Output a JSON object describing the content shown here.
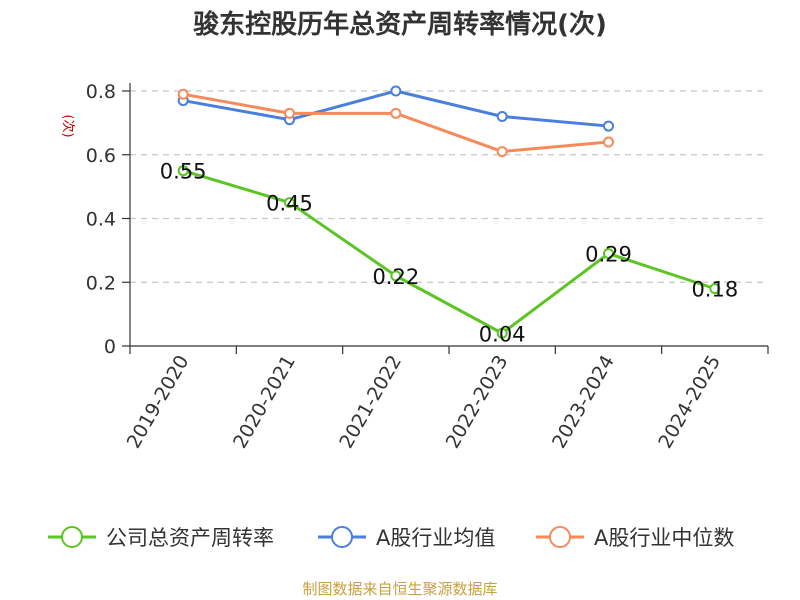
{
  "chart_data": {
    "type": "line",
    "title": "骏东控股历年总资产周转率情况(次)",
    "ylabel": "(次)",
    "categories": [
      "2019-2020",
      "2020-2021",
      "2021-2022",
      "2022-2023",
      "2023-2024",
      "2024-2025"
    ],
    "y_ticks": [
      "0",
      "0.2",
      "0.4",
      "0.6",
      "0.8"
    ],
    "ylim": [
      0,
      0.8
    ],
    "grid": true,
    "legend_position": "bottom",
    "series": [
      {
        "name": "公司总资产周转率",
        "color": "#5cc424",
        "values": [
          0.55,
          0.45,
          0.22,
          0.04,
          0.29,
          0.18
        ],
        "labels": [
          "0.55",
          "0.45",
          "0.22",
          "0.04",
          "0.29",
          "0.18"
        ]
      },
      {
        "name": "A股行业均值",
        "color": "#4a7fdc",
        "values": [
          0.77,
          0.71,
          0.8,
          0.72,
          0.69,
          null
        ]
      },
      {
        "name": "A股行业中位数",
        "color": "#f78a5a",
        "values": [
          0.79,
          0.73,
          0.73,
          0.61,
          0.64,
          null
        ]
      }
    ],
    "source": "制图数据来自恒生聚源数据库"
  }
}
